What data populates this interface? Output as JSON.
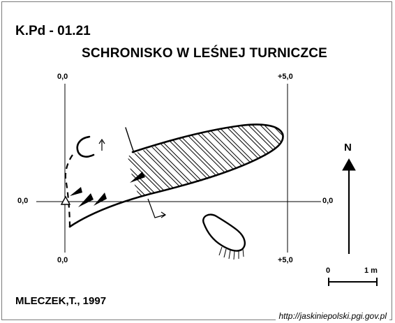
{
  "header": {
    "code": "K.Pd - 01.21",
    "title": "SCHRONISKO W LEŚNEJ TURNICZCE"
  },
  "axes": {
    "left_top": "0,0",
    "left_bottom": "0,0",
    "left_side": "0,0",
    "right_top": "+5,0",
    "right_bottom": "+5,0",
    "right_side": "0,0"
  },
  "north": {
    "label": "N"
  },
  "scale": {
    "start": "0",
    "end": "1 m"
  },
  "footer": {
    "author": "MLECZEK,T., 1997",
    "url": "http://jaskiniepolski.pgi.gov.pl"
  }
}
